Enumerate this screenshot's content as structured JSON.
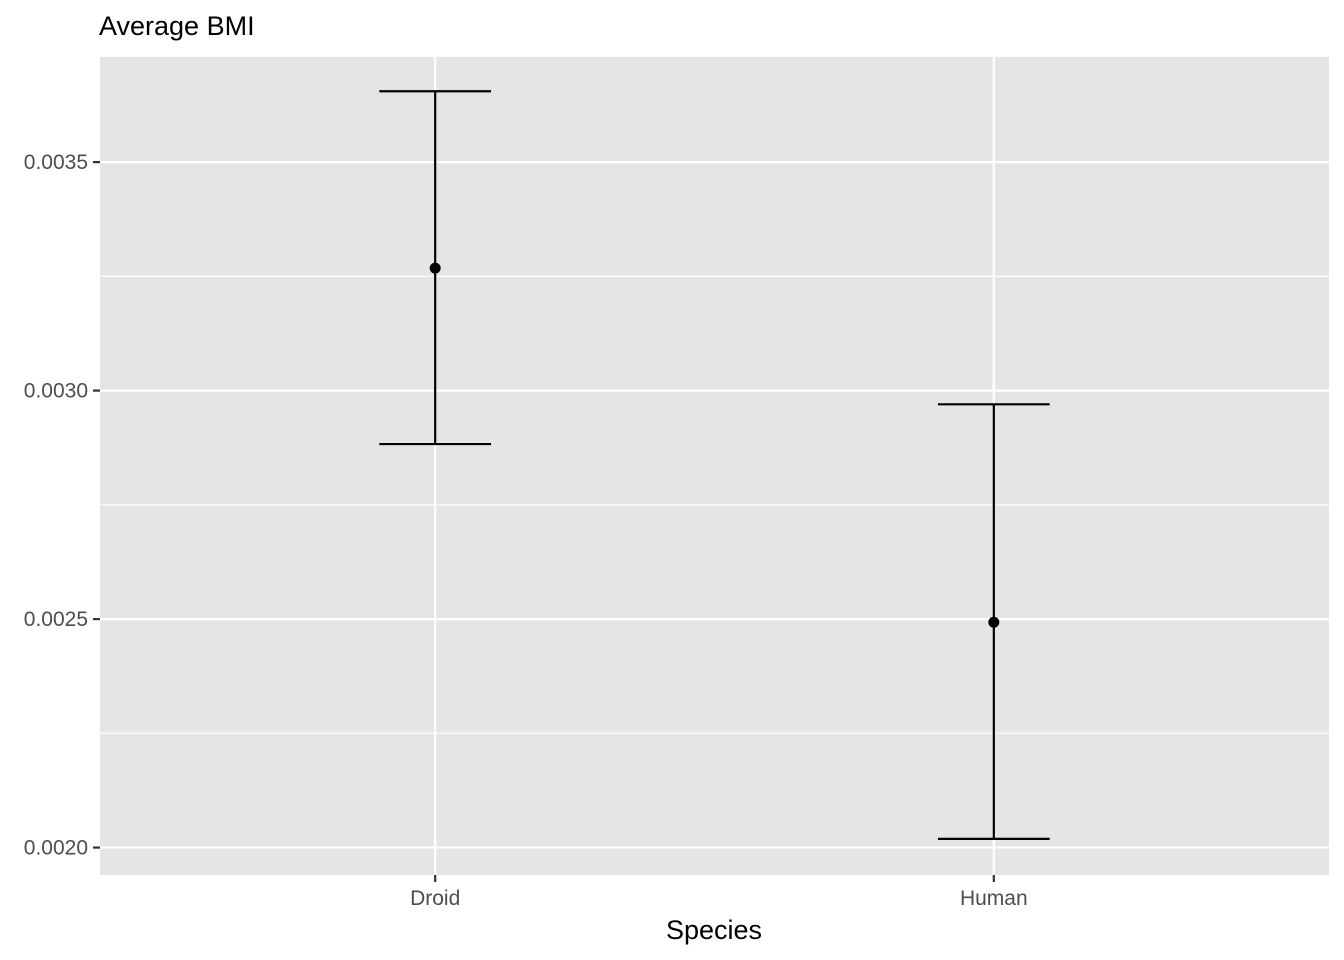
{
  "chart_data": {
    "type": "errorbar",
    "title": "Average BMI",
    "xlabel": "Species",
    "ylabel": "",
    "categories": [
      "Droid",
      "Human"
    ],
    "points": [
      {
        "category": "Droid",
        "mean": 0.003268,
        "lower": 0.002883,
        "upper": 0.003655
      },
      {
        "category": "Human",
        "mean": 0.002493,
        "lower": 0.002019,
        "upper": 0.00297
      }
    ],
    "ylim": [
      0.00194,
      0.00373
    ],
    "y_ticks": [
      0.002,
      0.0025,
      0.003,
      0.0035
    ],
    "y_tick_labels": [
      "0.0020",
      "0.0025",
      "0.0030",
      "0.0035"
    ],
    "y_minor_ticks": [
      0.00225,
      0.00275,
      0.00325
    ],
    "grid": true,
    "legend": "none",
    "colors": {
      "panel_background": "#e5e5e5",
      "grid": "#ffffff",
      "mark": "#000000",
      "tick_text": "#4d4d4d",
      "axis_tick": "#333333"
    }
  }
}
